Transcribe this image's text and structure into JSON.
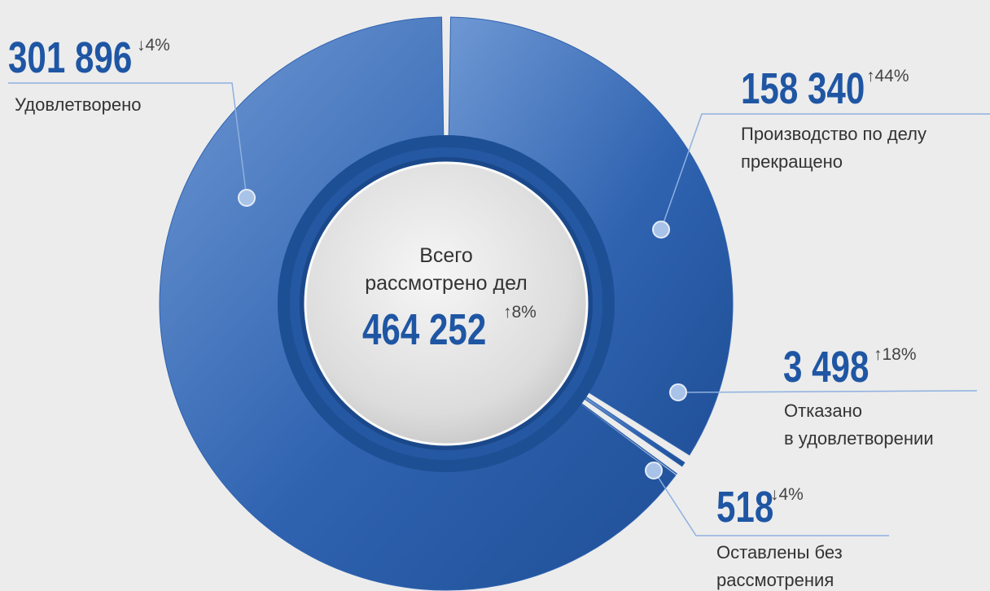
{
  "chart_data": {
    "type": "donut",
    "center_label": [
      "Всего",
      "рассмотрено дел"
    ],
    "total": 464252,
    "total_label": "464 252",
    "total_change": "↑8%",
    "categories": [
      "Удовлетворено",
      "Производство по делу\nпрекращено",
      "Отказано\nв удовлетворении",
      "Оставлены без\nрассмотрения"
    ],
    "values": [
      301896,
      158340,
      3498,
      518
    ],
    "value_labels": [
      "301 896",
      "158 340",
      "3 498",
      "518"
    ],
    "change_labels": [
      "↓4%",
      "↑44%",
      "↑18%",
      "↓4%"
    ],
    "color": "#2f63b0"
  }
}
